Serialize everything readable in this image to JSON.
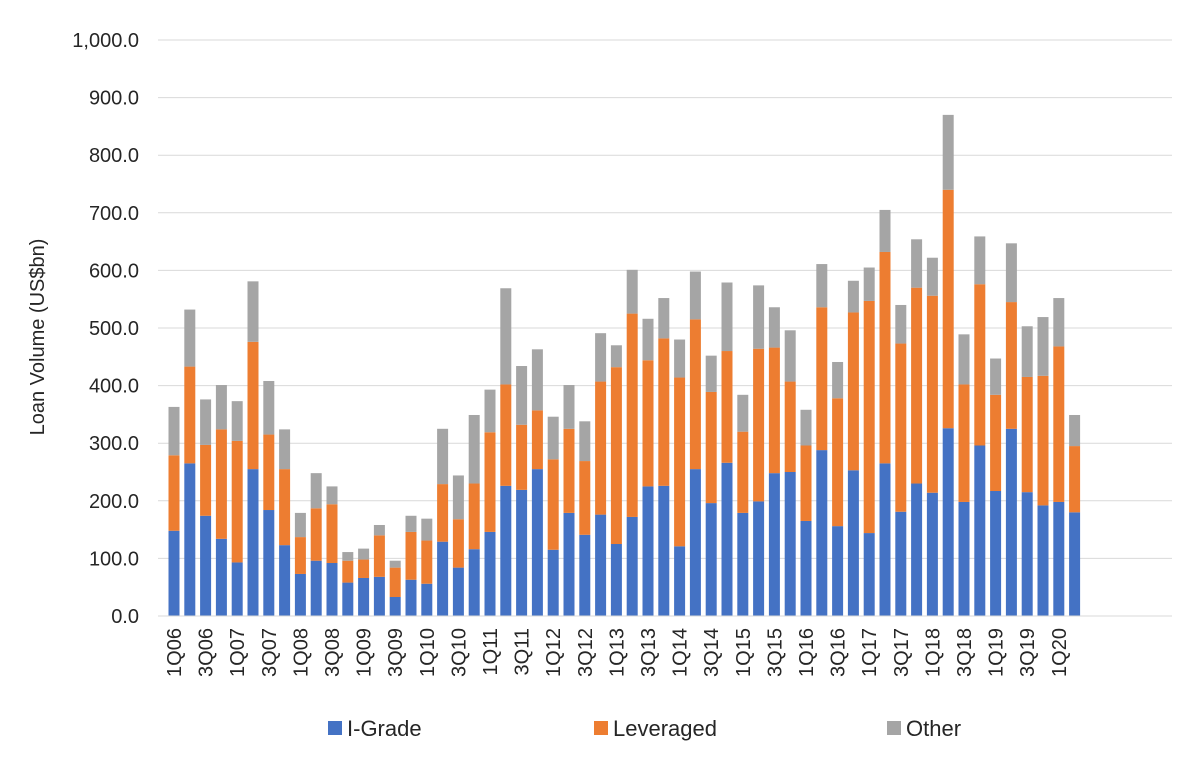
{
  "chart_data": {
    "type": "bar",
    "stacked": true,
    "title": "",
    "xlabel": "",
    "ylabel": "Loan Volume (US$bn)",
    "ylim": [
      0,
      1000
    ],
    "yticks": [
      "0.0",
      "100.0",
      "200.0",
      "300.0",
      "400.0",
      "500.0",
      "600.0",
      "700.0",
      "800.0",
      "900.0",
      "1,000.0"
    ],
    "grid": true,
    "legend_position": "bottom",
    "x_tick_labels": [
      "1Q06",
      "3Q06",
      "1Q07",
      "3Q07",
      "1Q08",
      "3Q08",
      "1Q09",
      "3Q09",
      "1Q10",
      "3Q10",
      "1Q11",
      "3Q11",
      "1Q12",
      "3Q12",
      "1Q13",
      "3Q13",
      "1Q14",
      "3Q14",
      "1Q15",
      "3Q15",
      "1Q16",
      "3Q16",
      "1Q17",
      "3Q17",
      "1Q18",
      "3Q18",
      "1Q19",
      "3Q19",
      "1Q20"
    ],
    "categories": [
      "1Q06",
      "2Q06",
      "3Q06",
      "4Q06",
      "1Q07",
      "2Q07",
      "3Q07",
      "4Q07",
      "1Q08",
      "2Q08",
      "3Q08",
      "4Q08",
      "1Q09",
      "2Q09",
      "3Q09",
      "4Q09",
      "1Q10",
      "2Q10",
      "3Q10",
      "4Q10",
      "1Q11",
      "2Q11",
      "3Q11",
      "4Q11",
      "1Q12",
      "2Q12",
      "3Q12",
      "4Q12",
      "1Q13",
      "2Q13",
      "3Q13",
      "4Q13",
      "1Q14",
      "2Q14",
      "3Q14",
      "4Q14",
      "1Q15",
      "2Q15",
      "3Q15",
      "4Q15",
      "1Q16",
      "2Q16",
      "3Q16",
      "4Q16",
      "1Q17",
      "2Q17",
      "3Q17",
      "4Q17",
      "1Q18",
      "2Q18",
      "3Q18",
      "4Q18",
      "1Q19",
      "2Q19",
      "3Q19",
      "4Q19",
      "1Q20",
      "2Q20"
    ],
    "series": [
      {
        "name": "I-Grade",
        "color": "#4472c4",
        "values": [
          148,
          265,
          174,
          134,
          93,
          255,
          184,
          123,
          73,
          96,
          92,
          58,
          66,
          68,
          33,
          63,
          56,
          129,
          84,
          116,
          146,
          226,
          219,
          255,
          115,
          179,
          141,
          176,
          125,
          172,
          225,
          226,
          121,
          255,
          196,
          266,
          179,
          199,
          248,
          250,
          165,
          288,
          156,
          253,
          144,
          265,
          181,
          230,
          214,
          326,
          198,
          296,
          217,
          325,
          215,
          192,
          198,
          180
        ]
      },
      {
        "name": "Leveraged",
        "color": "#ed7d31",
        "values": [
          131,
          168,
          123,
          190,
          211,
          221,
          131,
          132,
          64,
          91,
          102,
          38,
          32,
          72,
          51,
          83,
          75,
          100,
          84,
          114,
          173,
          176,
          113,
          102,
          157,
          146,
          128,
          231,
          307,
          353,
          219,
          256,
          293,
          260,
          193,
          194,
          141,
          265,
          218,
          157,
          131,
          248,
          222,
          274,
          403,
          367,
          292,
          340,
          342,
          414,
          204,
          280,
          167,
          220,
          200,
          225,
          270,
          115
        ]
      },
      {
        "name": "Other",
        "color": "#a5a5a5",
        "values": [
          84,
          99,
          79,
          77,
          69,
          105,
          93,
          69,
          42,
          61,
          31,
          15,
          19,
          18,
          12,
          28,
          38,
          96,
          76,
          119,
          74,
          167,
          102,
          106,
          74,
          76,
          69,
          84,
          38,
          76,
          72,
          70,
          66,
          83,
          63,
          119,
          64,
          110,
          70,
          89,
          62,
          75,
          63,
          55,
          58,
          73,
          67,
          84,
          66,
          130,
          87,
          83,
          63,
          102,
          88,
          102,
          84,
          54
        ]
      }
    ]
  }
}
